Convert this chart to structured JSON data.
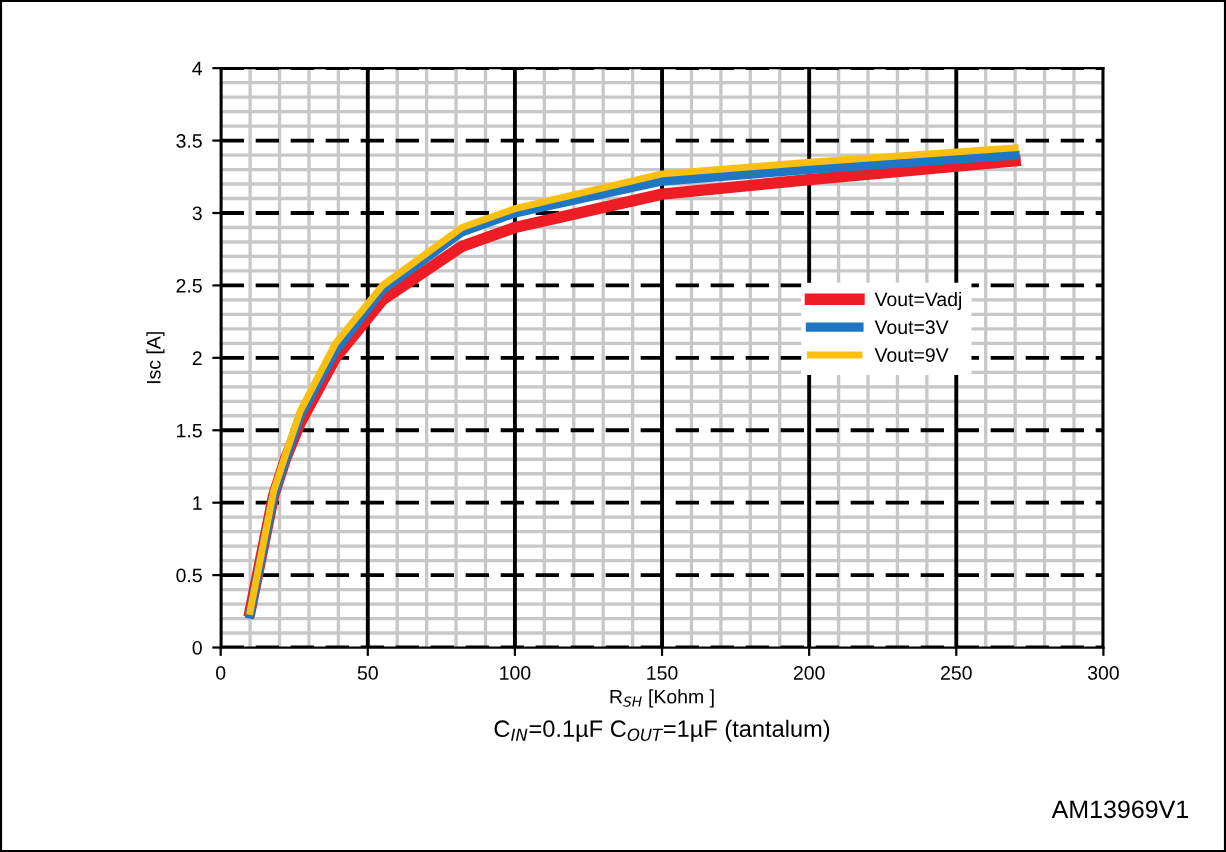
{
  "chart_data": {
    "type": "line",
    "xlabel": "R$_{SH}$ [Kohm ]",
    "ylabel": "Isc [A]",
    "annotations": [
      "C$_{IN}$=0.1µF C$_{OUT}$=1µF (tantalum)",
      "AM13969V1"
    ],
    "series": [
      {
        "name": "Vout=Vadj",
        "color": "#ee1c25",
        "x": [
          10,
          18,
          22,
          27,
          39,
          55,
          82,
          100,
          150,
          200,
          270
        ],
        "values": [
          0.25,
          1.05,
          1.3,
          1.55,
          2.0,
          2.4,
          2.77,
          2.9,
          3.13,
          3.23,
          3.36
        ]
      },
      {
        "name": "Vout=3V",
        "color": "#1f77c4",
        "x": [
          10,
          18,
          22,
          27,
          39,
          55,
          82,
          100,
          150,
          200,
          270
        ],
        "values": [
          0.23,
          1.05,
          1.3,
          1.6,
          2.05,
          2.47,
          2.87,
          3.0,
          3.22,
          3.3,
          3.4
        ]
      },
      {
        "name": "Vout=9V",
        "color": "#fbbf0f",
        "x": [
          10,
          18,
          22,
          27,
          39,
          55,
          82,
          100,
          150,
          200,
          270
        ],
        "values": [
          0.25,
          1.08,
          1.33,
          1.63,
          2.1,
          2.5,
          2.9,
          3.03,
          3.27,
          3.35,
          3.45
        ]
      }
    ],
    "xlim": [
      0,
      300
    ],
    "xticks": [
      0,
      50,
      100,
      150,
      200,
      250,
      300
    ],
    "ylim": [
      0,
      4
    ],
    "yticks": [
      0,
      0.5,
      1,
      1.5,
      2,
      2.5,
      3,
      3.5,
      4
    ],
    "grid": true,
    "legend": "right",
    "marker": "none",
    "line_style": "solid"
  }
}
